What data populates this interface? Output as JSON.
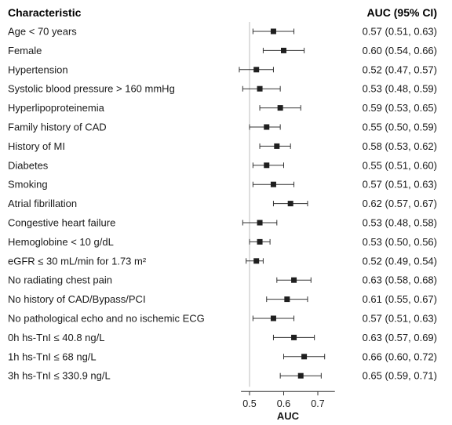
{
  "chart_data": {
    "type": "forest",
    "column_headers": {
      "left": "Characteristic",
      "right": "AUC (95% CI)"
    },
    "xlabel": "AUC",
    "xlim": [
      0.475,
      0.75
    ],
    "xticks": [
      "0.5",
      "0.6",
      "0.7"
    ],
    "reference_line": 0.5,
    "rows": [
      {
        "label": "Age < 70 years",
        "auc": 0.57,
        "lo": 0.51,
        "hi": 0.63,
        "text": "0.57 (0.51, 0.63)"
      },
      {
        "label": "Female",
        "auc": 0.6,
        "lo": 0.54,
        "hi": 0.66,
        "text": "0.60 (0.54, 0.66)"
      },
      {
        "label": "Hypertension",
        "auc": 0.52,
        "lo": 0.47,
        "hi": 0.57,
        "text": "0.52 (0.47, 0.57)"
      },
      {
        "label": "Systolic blood pressure > 160 mmHg",
        "auc": 0.53,
        "lo": 0.48,
        "hi": 0.59,
        "text": "0.53 (0.48, 0.59)"
      },
      {
        "label": "Hyperlipoproteinemia",
        "auc": 0.59,
        "lo": 0.53,
        "hi": 0.65,
        "text": "0.59 (0.53, 0.65)"
      },
      {
        "label": "Family history of CAD",
        "auc": 0.55,
        "lo": 0.5,
        "hi": 0.59,
        "text": "0.55 (0.50, 0.59)"
      },
      {
        "label": "History of MI",
        "auc": 0.58,
        "lo": 0.53,
        "hi": 0.62,
        "text": "0.58 (0.53, 0.62)"
      },
      {
        "label": "Diabetes",
        "auc": 0.55,
        "lo": 0.51,
        "hi": 0.6,
        "text": "0.55 (0.51, 0.60)"
      },
      {
        "label": "Smoking",
        "auc": 0.57,
        "lo": 0.51,
        "hi": 0.63,
        "text": "0.57 (0.51, 0.63)"
      },
      {
        "label": "Atrial fibrillation",
        "auc": 0.62,
        "lo": 0.57,
        "hi": 0.67,
        "text": "0.62 (0.57, 0.67)"
      },
      {
        "label": "Congestive heart failure",
        "auc": 0.53,
        "lo": 0.48,
        "hi": 0.58,
        "text": "0.53 (0.48, 0.58)"
      },
      {
        "label": "Hemoglobine < 10 g/dL",
        "auc": 0.53,
        "lo": 0.5,
        "hi": 0.56,
        "text": "0.53 (0.50, 0.56)"
      },
      {
        "label": "eGFR ≤ 30 mL/min for 1.73 m²",
        "auc": 0.52,
        "lo": 0.49,
        "hi": 0.54,
        "text": "0.52 (0.49, 0.54)"
      },
      {
        "label": "No radiating chest pain",
        "auc": 0.63,
        "lo": 0.58,
        "hi": 0.68,
        "text": "0.63 (0.58, 0.68)"
      },
      {
        "label": "No history of CAD/Bypass/PCI",
        "auc": 0.61,
        "lo": 0.55,
        "hi": 0.67,
        "text": "0.61 (0.55, 0.67)"
      },
      {
        "label": "No pathological echo and no ischemic ECG",
        "auc": 0.57,
        "lo": 0.51,
        "hi": 0.63,
        "text": "0.57 (0.51, 0.63)"
      },
      {
        "label": "0h hs-TnI ≤ 40.8 ng/L",
        "auc": 0.63,
        "lo": 0.57,
        "hi": 0.69,
        "text": "0.63 (0.57, 0.69)"
      },
      {
        "label": "1h hs-TnI ≤ 68 ng/L",
        "auc": 0.66,
        "lo": 0.6,
        "hi": 0.72,
        "text": "0.66 (0.60, 0.72)"
      },
      {
        "label": "3h hs-TnI ≤ 330.9 ng/L",
        "auc": 0.65,
        "lo": 0.59,
        "hi": 0.71,
        "text": "0.65 (0.59, 0.71)"
      }
    ],
    "colors": {
      "marker": "#1f1f1f",
      "ci_line": "#333333",
      "reference_line": "#bdbdbd",
      "text": "#1a1a1a"
    }
  }
}
